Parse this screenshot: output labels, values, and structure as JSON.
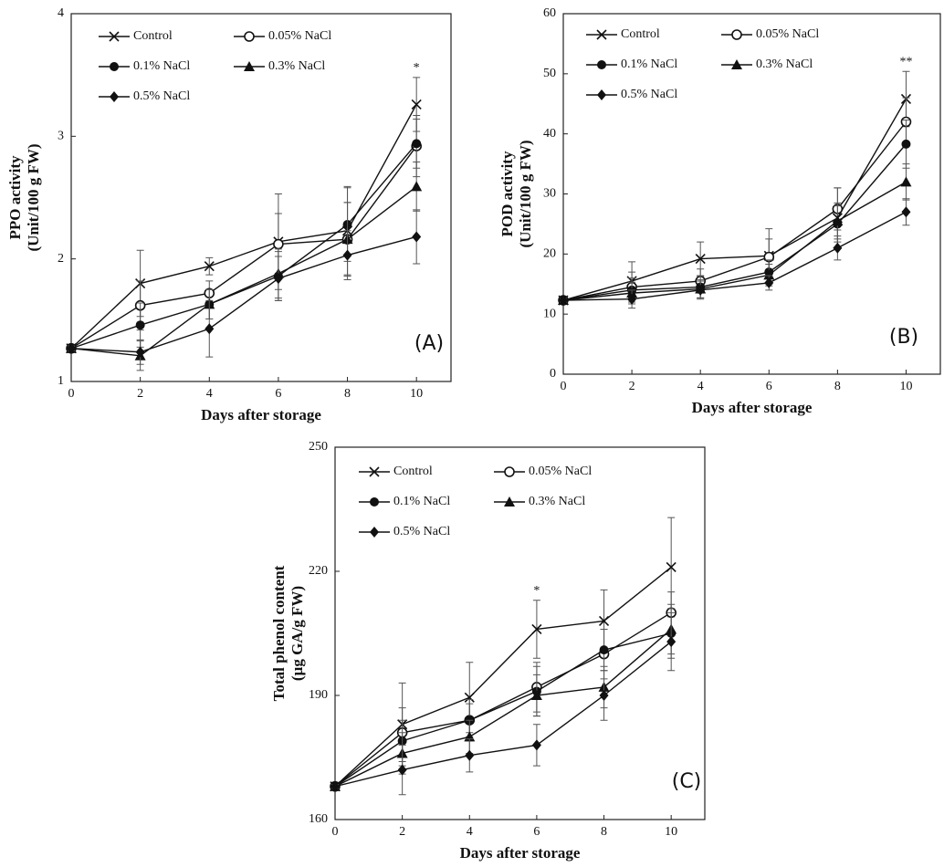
{
  "chart_data": [
    {
      "type": "line",
      "panel": "(A)",
      "ylabel": [
        "PPO activity",
        "(Unit/100 g FW)"
      ],
      "xlabel": "Days after storage",
      "x": [
        0,
        2,
        4,
        6,
        8,
        10
      ],
      "xlim": [
        0,
        11
      ],
      "xticks": [
        0,
        2,
        4,
        6,
        8,
        10
      ],
      "ylim": [
        1,
        4
      ],
      "yticks": [
        1,
        2,
        3,
        4
      ],
      "annotations": [
        {
          "text": "*",
          "x": 10
        }
      ],
      "series": [
        {
          "name": "Control",
          "marker": "x",
          "color": "#111111",
          "values": [
            1.27,
            1.8,
            1.94,
            2.14,
            2.23,
            3.26
          ],
          "errors": [
            0.02,
            0.27,
            0.07,
            0.39,
            0.36,
            0.22
          ]
        },
        {
          "name": "0.05% NaCl",
          "marker": "open-circle",
          "color": "#111111",
          "values": [
            1.27,
            1.62,
            1.72,
            2.12,
            2.16,
            2.92
          ],
          "errors": [
            0.02,
            0.2,
            0.1,
            0.25,
            0.3,
            0.25
          ]
        },
        {
          "name": "0.1% NaCl",
          "marker": "circle",
          "color": "#111111",
          "values": [
            1.27,
            1.46,
            1.63,
            1.86,
            2.28,
            2.94
          ],
          "errors": [
            0.02,
            0.18,
            0.12,
            0.2,
            0.3,
            0.2
          ]
        },
        {
          "name": "0.3% NaCl",
          "marker": "triangle",
          "color": "#111111",
          "values": [
            1.27,
            1.21,
            1.63,
            1.88,
            2.16,
            2.59
          ],
          "errors": [
            0.02,
            0.12,
            0.12,
            0.2,
            0.3,
            0.2
          ]
        },
        {
          "name": "0.5% NaCl",
          "marker": "diamond",
          "color": "#111111",
          "values": [
            1.27,
            1.24,
            1.43,
            1.84,
            2.03,
            2.18
          ],
          "errors": [
            0.02,
            0.1,
            0.23,
            0.18,
            0.2,
            0.22
          ]
        }
      ]
    },
    {
      "type": "line",
      "panel": "(B)",
      "ylabel": [
        "POD activity",
        "(Unit/100 g FW)"
      ],
      "xlabel": "Days after storage",
      "x": [
        0,
        2,
        4,
        6,
        8,
        10
      ],
      "xlim": [
        0,
        11
      ],
      "xticks": [
        0,
        2,
        4,
        6,
        8,
        10
      ],
      "ylim": [
        0,
        60
      ],
      "yticks": [
        0,
        10,
        20,
        30,
        40,
        50,
        60
      ],
      "annotations": [
        {
          "text": "**",
          "x": 10
        }
      ],
      "series": [
        {
          "name": "Control",
          "marker": "x",
          "color": "#111111",
          "values": [
            12.3,
            15.5,
            19.2,
            19.7,
            26,
            45.8
          ],
          "errors": [
            0.3,
            3.2,
            2.8,
            4.5,
            5,
            4.6
          ]
        },
        {
          "name": "0.05% NaCl",
          "marker": "open-circle",
          "color": "#111111",
          "values": [
            12.3,
            14.5,
            15.5,
            19.5,
            27.5,
            42
          ],
          "errors": [
            0.3,
            2.5,
            2,
            3,
            3.5,
            4
          ]
        },
        {
          "name": "0.1% NaCl",
          "marker": "circle",
          "color": "#111111",
          "values": [
            12.3,
            14,
            14.5,
            17,
            25,
            38.3
          ],
          "errors": [
            0.3,
            2,
            1.8,
            2,
            3,
            4
          ]
        },
        {
          "name": "0.3% NaCl",
          "marker": "triangle",
          "color": "#111111",
          "values": [
            12.3,
            13.5,
            14.2,
            16.5,
            25.5,
            32
          ],
          "errors": [
            0.3,
            1.8,
            1.5,
            1.8,
            3,
            3
          ]
        },
        {
          "name": "0.5% NaCl",
          "marker": "diamond",
          "color": "#111111",
          "values": [
            12.3,
            12.5,
            14,
            15.2,
            21,
            27
          ],
          "errors": [
            0.3,
            1.5,
            1.5,
            1.2,
            2,
            2.2
          ]
        }
      ]
    },
    {
      "type": "line",
      "panel": "(C)",
      "ylabel": [
        "Total phenol content",
        "(µg GA/g FW)"
      ],
      "xlabel": "Days after storage",
      "x": [
        0,
        2,
        4,
        6,
        8,
        10
      ],
      "xlim": [
        0,
        11
      ],
      "xticks": [
        0,
        2,
        4,
        6,
        8,
        10
      ],
      "ylim": [
        160,
        250
      ],
      "yticks": [
        160,
        190,
        220,
        250
      ],
      "annotations": [
        {
          "text": "*",
          "x": 6
        }
      ],
      "series": [
        {
          "name": "Control",
          "marker": "x",
          "color": "#111111",
          "values": [
            168,
            183,
            189.5,
            206,
            208,
            221
          ],
          "errors": [
            0.5,
            10,
            8.5,
            7,
            7.5,
            12
          ]
        },
        {
          "name": "0.05% NaCl",
          "marker": "open-circle",
          "color": "#111111",
          "values": [
            168,
            181,
            184,
            192,
            200,
            210
          ],
          "errors": [
            0.5,
            6,
            5,
            6,
            6,
            5
          ]
        },
        {
          "name": "0.1% NaCl",
          "marker": "circle",
          "color": "#111111",
          "values": [
            168,
            179,
            184,
            191,
            201,
            205
          ],
          "errors": [
            0.5,
            5,
            4,
            6,
            5,
            6
          ]
        },
        {
          "name": "0.3% NaCl",
          "marker": "triangle",
          "color": "#111111",
          "values": [
            168,
            176,
            180,
            190,
            192,
            206
          ],
          "errors": [
            0.5,
            5,
            4,
            5,
            5,
            6
          ]
        },
        {
          "name": "0.5% NaCl",
          "marker": "diamond",
          "color": "#111111",
          "values": [
            168,
            172,
            175.5,
            178,
            190,
            203
          ],
          "errors": [
            0.5,
            6,
            4,
            5,
            6,
            7
          ]
        }
      ]
    }
  ]
}
